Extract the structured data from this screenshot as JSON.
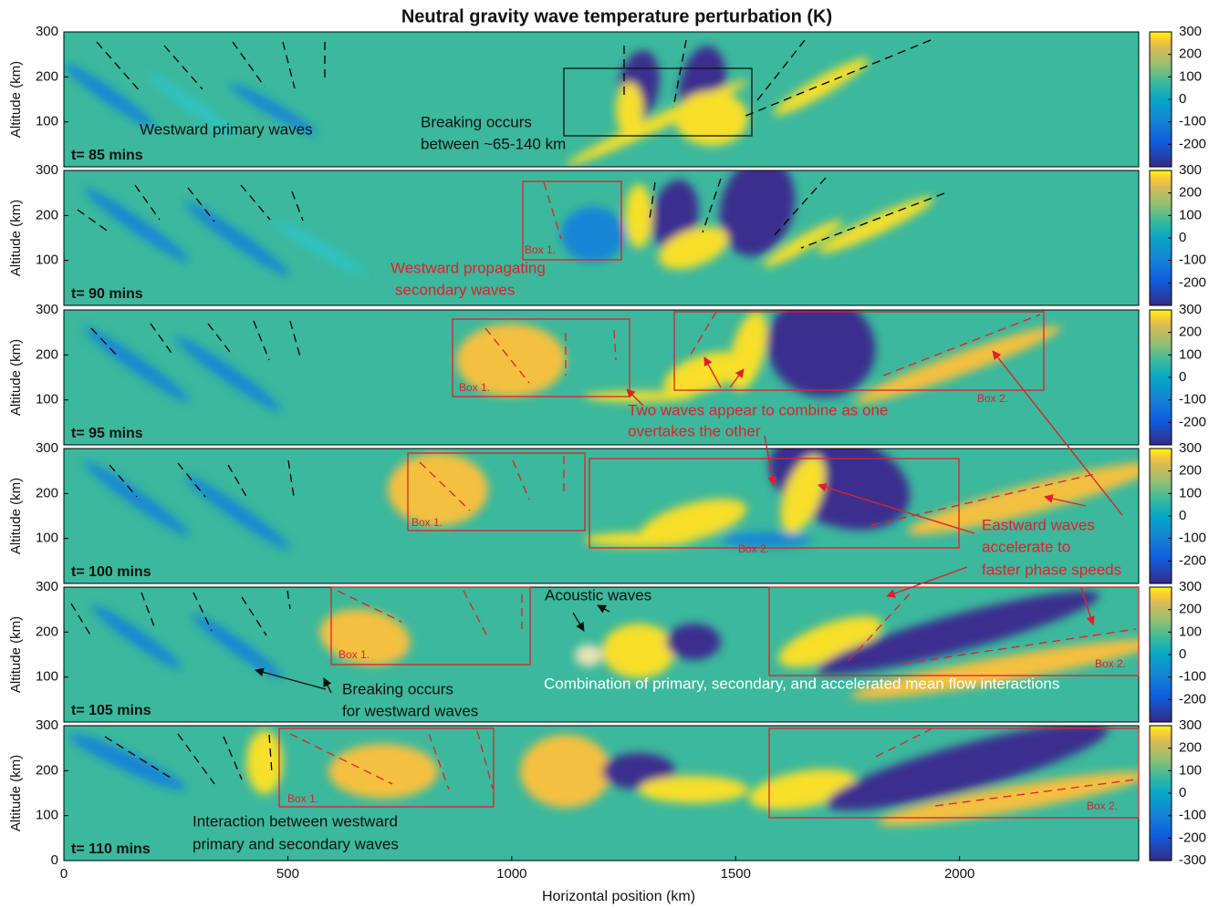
{
  "title": "Neutral gravity wave temperature perturbation (K)",
  "chart_data": [
    {
      "type": "heatmap",
      "label": "t= 85 mins",
      "ylabel": "Altitude (km)",
      "xlim": [
        0,
        2400
      ],
      "ylim": [
        0,
        300
      ],
      "yticks": [
        100,
        200,
        300
      ],
      "clim": [
        -300,
        300
      ],
      "cticks": [
        -200,
        -100,
        0,
        100,
        200,
        300
      ],
      "annotations": [
        {
          "text": "Westward primary waves",
          "color": "#111111"
        },
        {
          "text": "Breaking occurs",
          "color": "#111111"
        },
        {
          "text": "between ~65-140 km",
          "color": "#111111"
        }
      ],
      "boxes": []
    },
    {
      "type": "heatmap",
      "label": "t= 90 mins",
      "ylabel": "Altitude (km)",
      "xlim": [
        0,
        2400
      ],
      "ylim": [
        0,
        300
      ],
      "yticks": [
        100,
        200,
        300
      ],
      "clim": [
        -300,
        300
      ],
      "cticks": [
        -200,
        -100,
        0,
        100,
        200,
        300
      ],
      "annotations": [
        {
          "text": "Westward propagating",
          "color": "#e0202a"
        },
        {
          "text": "secondary waves",
          "color": "#e0202a"
        }
      ],
      "boxes": [
        "Box 1."
      ]
    },
    {
      "type": "heatmap",
      "label": "t= 95 mins",
      "ylabel": "Altitude (km)",
      "xlim": [
        0,
        2400
      ],
      "ylim": [
        0,
        300
      ],
      "yticks": [
        100,
        200,
        300
      ],
      "clim": [
        -300,
        300
      ],
      "cticks": [
        -200,
        -100,
        0,
        100,
        200,
        300
      ],
      "annotations": [
        {
          "text": "Two waves appear to combine as one",
          "color": "#e0202a"
        },
        {
          "text": "overtakes the other",
          "color": "#e0202a"
        }
      ],
      "boxes": [
        "Box 1.",
        "Box 2."
      ]
    },
    {
      "type": "heatmap",
      "label": "t= 100 mins",
      "ylabel": "Altitude (km)",
      "xlim": [
        0,
        2400
      ],
      "ylim": [
        0,
        300
      ],
      "yticks": [
        100,
        200,
        300
      ],
      "clim": [
        -300,
        300
      ],
      "cticks": [
        -200,
        -100,
        0,
        100,
        200,
        300
      ],
      "annotations": [
        {
          "text": "Eastward waves",
          "color": "#e0202a"
        },
        {
          "text": "accelerate to",
          "color": "#e0202a"
        },
        {
          "text": "faster phase speeds",
          "color": "#e0202a"
        }
      ],
      "boxes": [
        "Box 1.",
        "Box 2."
      ]
    },
    {
      "type": "heatmap",
      "label": "t= 105 mins",
      "ylabel": "Altitude (km)",
      "xlim": [
        0,
        2400
      ],
      "ylim": [
        0,
        300
      ],
      "yticks": [
        100,
        200,
        300
      ],
      "clim": [
        -300,
        300
      ],
      "cticks": [
        -200,
        -100,
        0,
        100,
        200,
        300
      ],
      "annotations": [
        {
          "text": "Acoustic waves",
          "color": "#111111"
        },
        {
          "text": "Breaking occurs",
          "color": "#111111"
        },
        {
          "text": "for westward waves",
          "color": "#111111"
        },
        {
          "text": "Combination of primary, secondary, and accelerated mean flow interactions",
          "color": "#ffffff"
        }
      ],
      "boxes": [
        "Box 1.",
        "Box 2."
      ]
    },
    {
      "type": "heatmap",
      "label": "t= 110 mins",
      "ylabel": "Altitude (km)",
      "xlabel": "Horizontal position (km)",
      "xlim": [
        0,
        2400
      ],
      "ylim": [
        0,
        300
      ],
      "xticks": [
        0,
        500,
        1000,
        1500,
        2000
      ],
      "yticks": [
        0,
        100,
        200,
        300
      ],
      "clim": [
        -300,
        300
      ],
      "cticks": [
        -300,
        -200,
        -100,
        0,
        100,
        200,
        300
      ],
      "annotations": [
        {
          "text": "Interaction between westward",
          "color": "#111111"
        },
        {
          "text": "primary and secondary waves",
          "color": "#111111"
        }
      ],
      "boxes": [
        "Box 1.",
        "Box 2."
      ]
    }
  ]
}
